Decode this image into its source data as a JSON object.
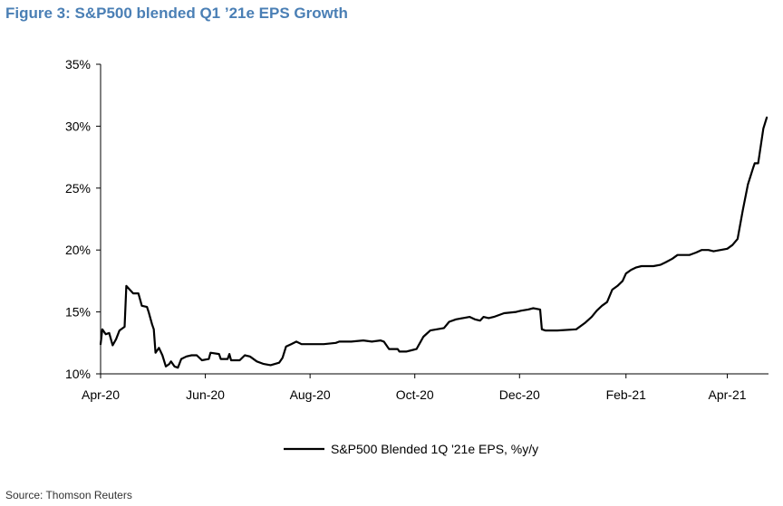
{
  "header": {
    "title": "Figure 3: S&P500 blended Q1 ’21e EPS Growth"
  },
  "footer": {
    "source": "Source: Thomson Reuters"
  },
  "chart_data": {
    "type": "line",
    "title": "",
    "xlabel": "",
    "ylabel": "",
    "x_ticks": [
      "Apr-20",
      "Jun-20",
      "Aug-20",
      "Oct-20",
      "Dec-20",
      "Feb-21",
      "Apr-21"
    ],
    "y_ticks": [
      "10%",
      "15%",
      "20%",
      "25%",
      "30%",
      "35%"
    ],
    "ylim": [
      10,
      35
    ],
    "grid": false,
    "legend_position": "bottom-center",
    "series": [
      {
        "name": "S&P500 Blended 1Q '21e EPS, %y/y",
        "color": "#000000",
        "points": [
          [
            "2020-04-01",
            12.4
          ],
          [
            "2020-04-02",
            13.6
          ],
          [
            "2020-04-04",
            13.2
          ],
          [
            "2020-04-06",
            13.3
          ],
          [
            "2020-04-08",
            12.3
          ],
          [
            "2020-04-10",
            12.8
          ],
          [
            "2020-04-12",
            13.5
          ],
          [
            "2020-04-15",
            13.8
          ],
          [
            "2020-04-16",
            17.1
          ],
          [
            "2020-04-18",
            16.8
          ],
          [
            "2020-04-20",
            16.5
          ],
          [
            "2020-04-23",
            16.5
          ],
          [
            "2020-04-25",
            15.5
          ],
          [
            "2020-04-28",
            15.4
          ],
          [
            "2020-04-29",
            15.0
          ],
          [
            "2020-05-01",
            14.0
          ],
          [
            "2020-05-02",
            13.6
          ],
          [
            "2020-05-03",
            11.7
          ],
          [
            "2020-05-05",
            12.1
          ],
          [
            "2020-05-07",
            11.5
          ],
          [
            "2020-05-09",
            10.6
          ],
          [
            "2020-05-11",
            10.8
          ],
          [
            "2020-05-12",
            11.0
          ],
          [
            "2020-05-14",
            10.6
          ],
          [
            "2020-05-16",
            10.5
          ],
          [
            "2020-05-18",
            11.2
          ],
          [
            "2020-05-21",
            11.4
          ],
          [
            "2020-05-24",
            11.5
          ],
          [
            "2020-05-27",
            11.5
          ],
          [
            "2020-05-30",
            11.1
          ],
          [
            "2020-06-03",
            11.2
          ],
          [
            "2020-06-04",
            11.7
          ],
          [
            "2020-06-09",
            11.6
          ],
          [
            "2020-06-10",
            11.2
          ],
          [
            "2020-06-14",
            11.2
          ],
          [
            "2020-06-15",
            11.6
          ],
          [
            "2020-06-16",
            11.1
          ],
          [
            "2020-06-19",
            11.1
          ],
          [
            "2020-06-21",
            11.1
          ],
          [
            "2020-06-24",
            11.5
          ],
          [
            "2020-06-27",
            11.4
          ],
          [
            "2020-07-01",
            11.0
          ],
          [
            "2020-07-05",
            10.8
          ],
          [
            "2020-07-09",
            10.7
          ],
          [
            "2020-07-14",
            10.9
          ],
          [
            "2020-07-16",
            11.3
          ],
          [
            "2020-07-18",
            12.2
          ],
          [
            "2020-07-21",
            12.4
          ],
          [
            "2020-07-24",
            12.6
          ],
          [
            "2020-07-27",
            12.4
          ],
          [
            "2020-08-03",
            12.4
          ],
          [
            "2020-08-09",
            12.4
          ],
          [
            "2020-08-16",
            12.5
          ],
          [
            "2020-08-18",
            12.6
          ],
          [
            "2020-08-25",
            12.6
          ],
          [
            "2020-09-01",
            12.7
          ],
          [
            "2020-09-06",
            12.6
          ],
          [
            "2020-09-11",
            12.7
          ],
          [
            "2020-09-13",
            12.6
          ],
          [
            "2020-09-16",
            12.0
          ],
          [
            "2020-09-21",
            12.0
          ],
          [
            "2020-09-22",
            11.8
          ],
          [
            "2020-09-26",
            11.8
          ],
          [
            "2020-09-29",
            11.9
          ],
          [
            "2020-10-02",
            12.0
          ],
          [
            "2020-10-04",
            12.5
          ],
          [
            "2020-10-06",
            13.0
          ],
          [
            "2020-10-10",
            13.5
          ],
          [
            "2020-10-18",
            13.7
          ],
          [
            "2020-10-21",
            14.2
          ],
          [
            "2020-10-25",
            14.4
          ],
          [
            "2020-10-29",
            14.5
          ],
          [
            "2020-11-02",
            14.6
          ],
          [
            "2020-11-05",
            14.4
          ],
          [
            "2020-11-08",
            14.3
          ],
          [
            "2020-11-10",
            14.6
          ],
          [
            "2020-11-13",
            14.5
          ],
          [
            "2020-11-16",
            14.6
          ],
          [
            "2020-11-22",
            14.9
          ],
          [
            "2020-11-29",
            15.0
          ],
          [
            "2020-12-02",
            15.1
          ],
          [
            "2020-12-06",
            15.2
          ],
          [
            "2020-12-09",
            15.3
          ],
          [
            "2020-12-13",
            15.2
          ],
          [
            "2020-12-14",
            13.6
          ],
          [
            "2020-12-16",
            13.5
          ],
          [
            "2020-12-23",
            13.5
          ],
          [
            "2021-01-03",
            13.6
          ],
          [
            "2021-01-08",
            14.1
          ],
          [
            "2021-01-12",
            14.6
          ],
          [
            "2021-01-15",
            15.1
          ],
          [
            "2021-01-18",
            15.5
          ],
          [
            "2021-01-21",
            15.8
          ],
          [
            "2021-01-24",
            16.8
          ],
          [
            "2021-01-27",
            17.1
          ],
          [
            "2021-01-30",
            17.5
          ],
          [
            "2021-02-01",
            18.1
          ],
          [
            "2021-02-04",
            18.4
          ],
          [
            "2021-02-07",
            18.6
          ],
          [
            "2021-02-10",
            18.7
          ],
          [
            "2021-02-17",
            18.7
          ],
          [
            "2021-02-21",
            18.8
          ],
          [
            "2021-02-24",
            19.0
          ],
          [
            "2021-02-28",
            19.3
          ],
          [
            "2021-03-03",
            19.6
          ],
          [
            "2021-03-10",
            19.6
          ],
          [
            "2021-03-14",
            19.8
          ],
          [
            "2021-03-17",
            20.0
          ],
          [
            "2021-03-21",
            20.0
          ],
          [
            "2021-03-24",
            19.9
          ],
          [
            "2021-03-28",
            20.0
          ],
          [
            "2021-04-01",
            20.1
          ],
          [
            "2021-04-04",
            20.4
          ],
          [
            "2021-04-07",
            20.9
          ],
          [
            "2021-04-10",
            23.2
          ],
          [
            "2021-04-13",
            25.3
          ],
          [
            "2021-04-16",
            26.6
          ],
          [
            "2021-04-17",
            27.0
          ],
          [
            "2021-04-19",
            27.0
          ],
          [
            "2021-04-22",
            29.8
          ],
          [
            "2021-04-24",
            30.7
          ]
        ]
      }
    ]
  }
}
